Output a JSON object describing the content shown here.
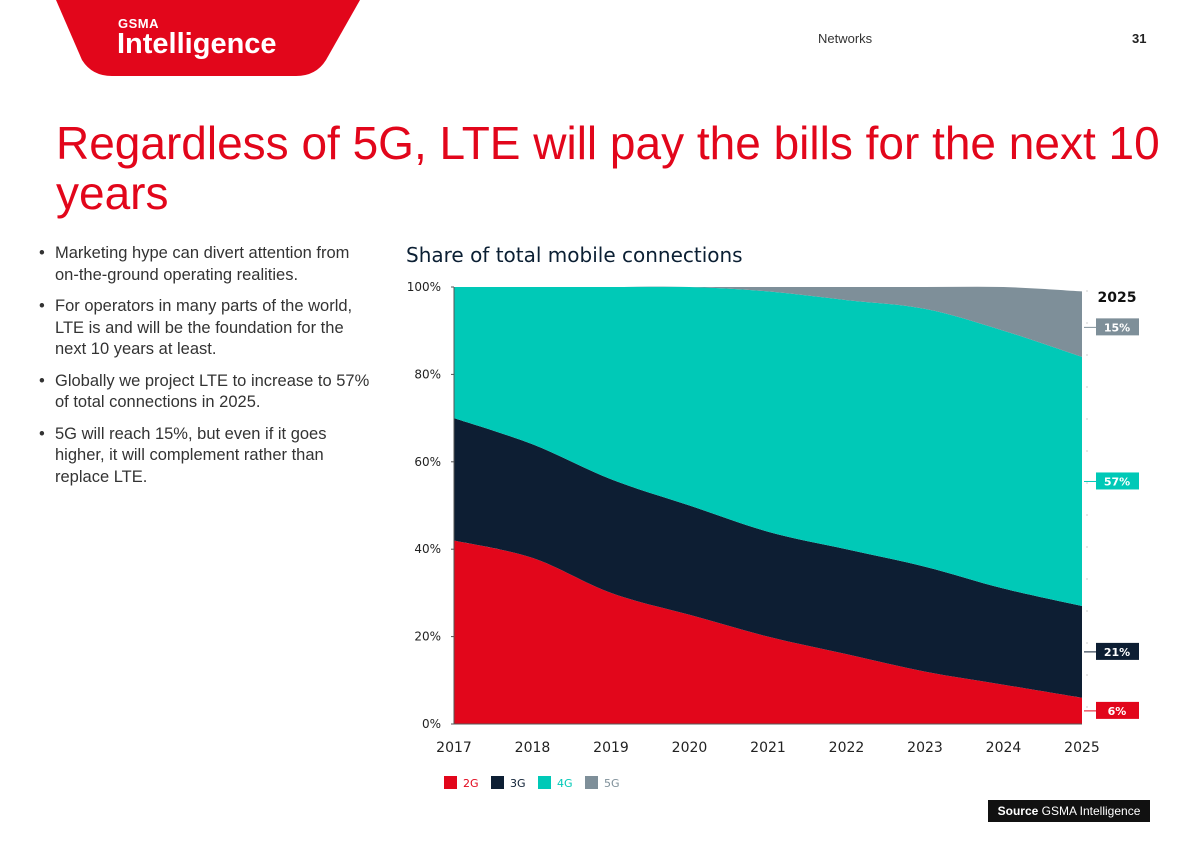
{
  "header": {
    "logo_small": "GSMA",
    "logo_big": "Intelligence",
    "section": "Networks",
    "page_number": "31",
    "brand_color": "#e2061b"
  },
  "headline": "Regardless of 5G, LTE will pay the bills for the next 10 years",
  "bullets": [
    "Marketing hype can divert attention from on-the-ground operating realities.",
    "For operators in many parts of the world, LTE is and will be the foundation for the next 10 years at least.",
    "Globally we project LTE to increase to 57% of  total connections in 2025.",
    "5G will reach 15%, but even if it goes higher, it will complement rather than replace LTE."
  ],
  "source": {
    "label": "Source",
    "text": "GSMA Intelligence"
  },
  "chart_data": {
    "type": "area",
    "stacked": true,
    "title": "Share of total mobile connections",
    "x": [
      "2017",
      "2018",
      "2019",
      "2020",
      "2021",
      "2022",
      "2023",
      "2024",
      "2025"
    ],
    "ylim": [
      0,
      100
    ],
    "yticks": [
      "0%",
      "20%",
      "40%",
      "60%",
      "80%",
      "100%"
    ],
    "series": [
      {
        "name": "2G",
        "color": "#e2061b",
        "values": [
          42,
          38,
          30,
          25,
          20,
          16,
          12,
          9,
          6
        ]
      },
      {
        "name": "3G",
        "color": "#0d1e33",
        "values": [
          28,
          26,
          26,
          25,
          24,
          24,
          24,
          22,
          21
        ]
      },
      {
        "name": "4G",
        "color": "#00c9b7",
        "values": [
          30,
          36,
          44,
          50,
          55,
          57,
          59,
          59,
          57
        ]
      },
      {
        "name": "5G",
        "color": "#7e8f99",
        "values": [
          0,
          0,
          0,
          0,
          1,
          3,
          5,
          10,
          15
        ]
      }
    ],
    "end_label": {
      "title": "2025",
      "items": [
        {
          "text": "15%",
          "color": "#7e8f99"
        },
        {
          "text": "57%",
          "color": "#00c9b7"
        },
        {
          "text": "21%",
          "color": "#0d1e33"
        },
        {
          "text": "6%",
          "color": "#e2061b"
        }
      ]
    },
    "legend": "bottom-left",
    "grid": false
  }
}
